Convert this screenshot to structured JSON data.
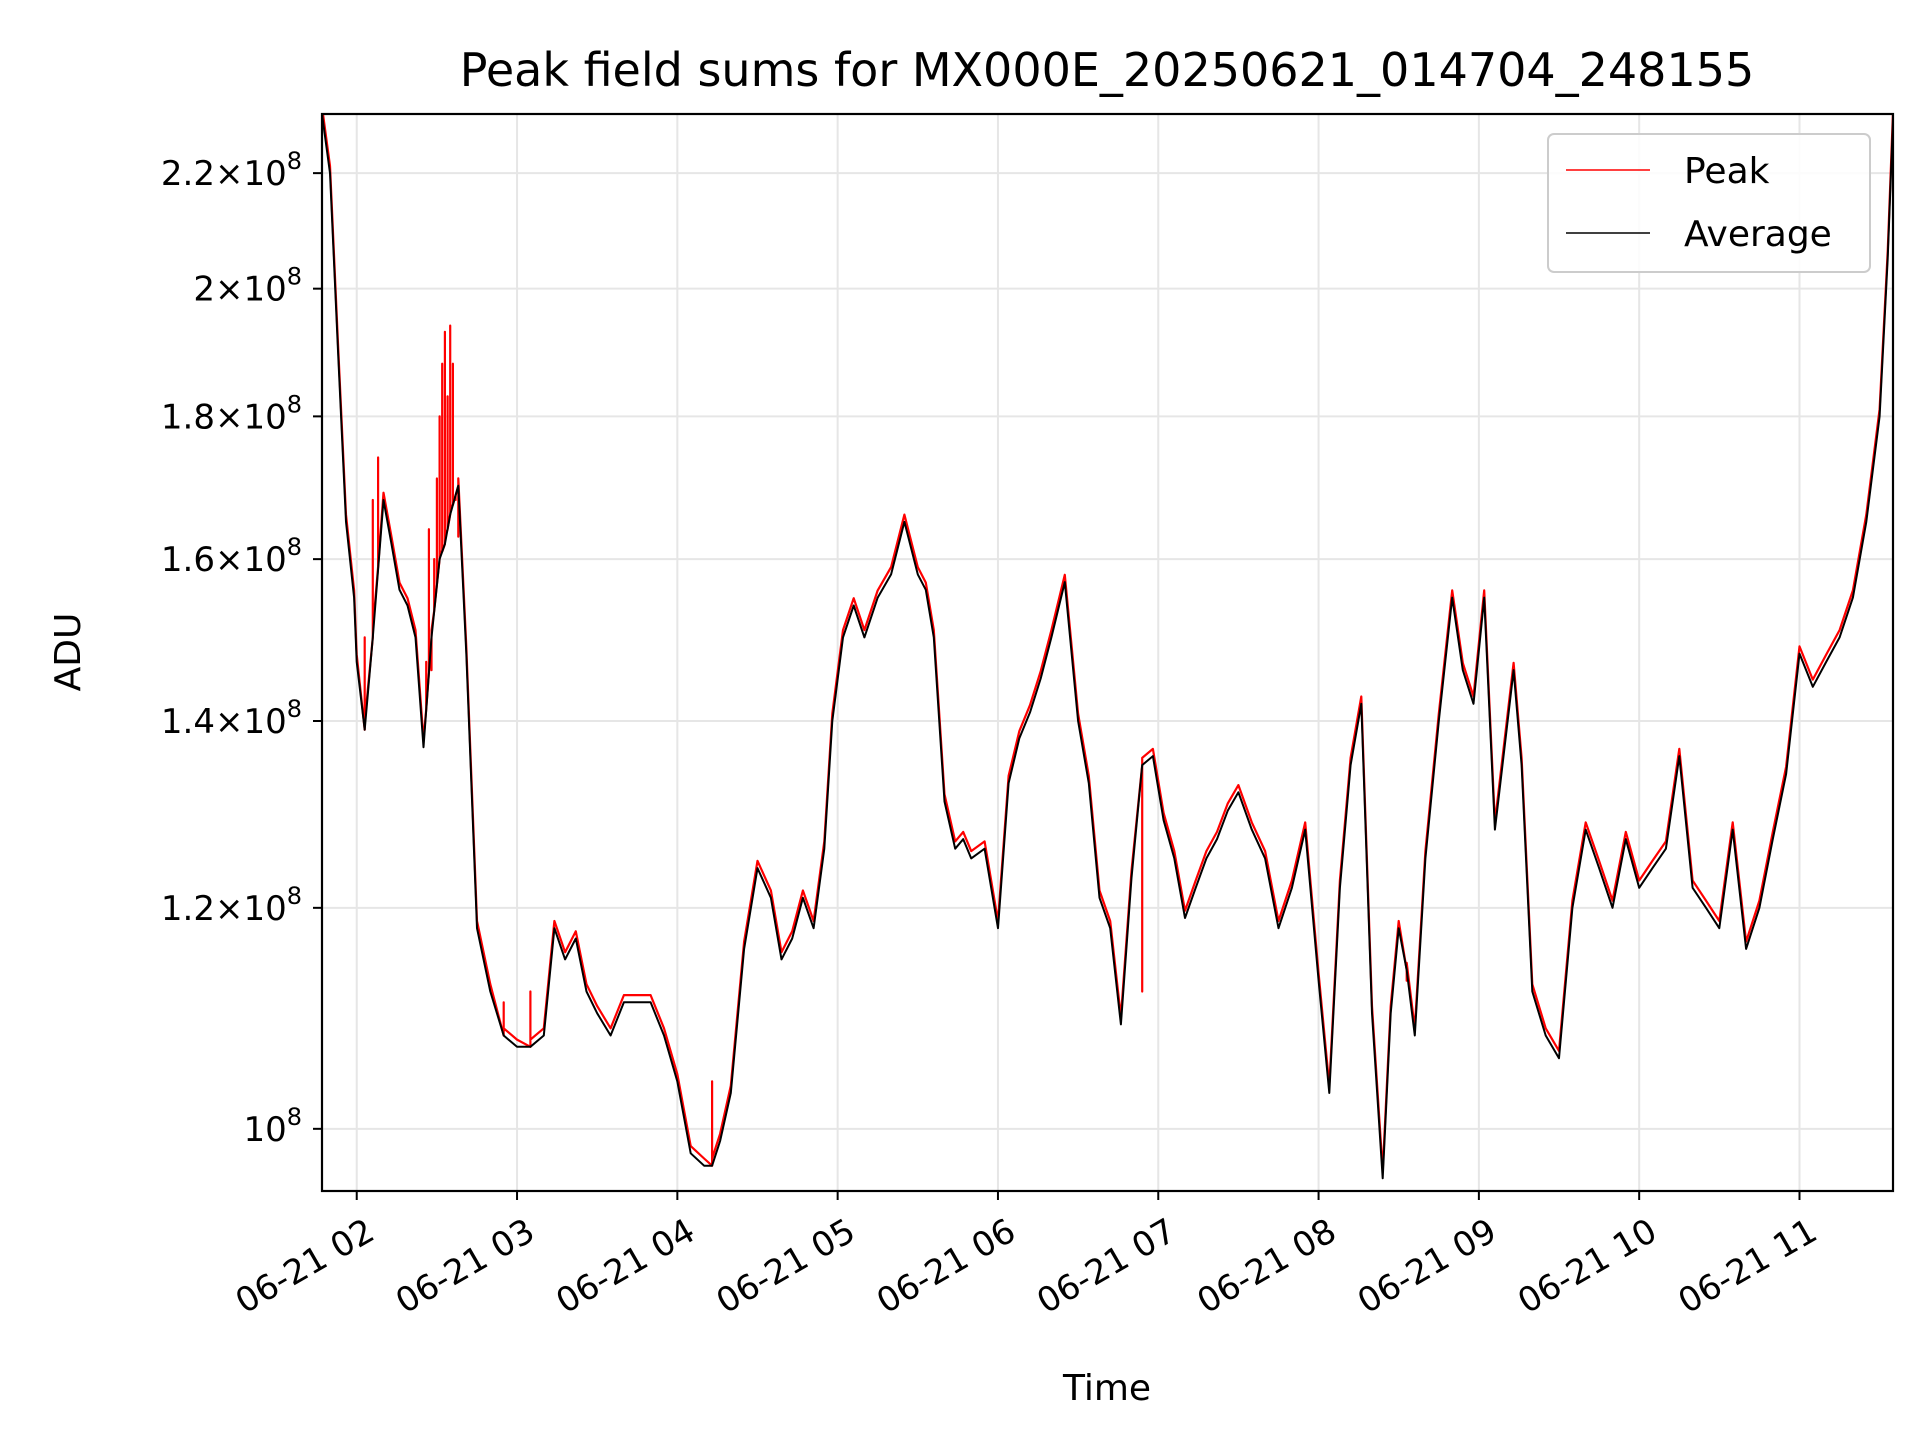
{
  "chart_data": {
    "type": "line",
    "title": "Peak field sums for MX000E_20250621_014704_248155",
    "xlabel": "Time",
    "ylabel": "ADU",
    "y_scale": "log",
    "ylim": [
      95000000,
      231000000
    ],
    "xlim": [
      "06-21 01:47",
      "06-21 11:35"
    ],
    "grid": true,
    "legend_position": "top-right",
    "x_ticks": [
      "06-21 02",
      "06-21 03",
      "06-21 04",
      "06-21 05",
      "06-21 06",
      "06-21 07",
      "06-21 08",
      "06-21 09",
      "06-21 10",
      "06-21 11"
    ],
    "y_ticks": [
      {
        "value": 100000000,
        "mant": "",
        "exp": "8"
      },
      {
        "value": 120000000,
        "mant": "1.2",
        "exp": "8"
      },
      {
        "value": 140000000,
        "mant": "1.4",
        "exp": "8"
      },
      {
        "value": 160000000,
        "mant": "1.6",
        "exp": "8"
      },
      {
        "value": 180000000,
        "mant": "1.8",
        "exp": "8"
      },
      {
        "value": 200000000,
        "mant": "2",
        "exp": "8"
      },
      {
        "value": 220000000,
        "mant": "2.2",
        "exp": "8"
      }
    ],
    "series": [
      {
        "name": "Average",
        "color": "#000000",
        "x": [
          "06-21 01:47",
          "06-21 01:50",
          "06-21 01:53",
          "06-21 01:56",
          "06-21 01:59",
          "06-21 02:00",
          "06-21 02:03",
          "06-21 02:06",
          "06-21 02:10",
          "06-21 02:13",
          "06-21 02:16",
          "06-21 02:19",
          "06-21 02:22",
          "06-21 02:25",
          "06-21 02:28",
          "06-21 02:31",
          "06-21 02:33",
          "06-21 02:35",
          "06-21 02:38",
          "06-21 02:41",
          "06-21 02:45",
          "06-21 02:50",
          "06-21 02:55",
          "06-21 03:00",
          "06-21 03:05",
          "06-21 03:10",
          "06-21 03:14",
          "06-21 03:18",
          "06-21 03:22",
          "06-21 03:26",
          "06-21 03:30",
          "06-21 03:35",
          "06-21 03:40",
          "06-21 03:45",
          "06-21 03:50",
          "06-21 03:55",
          "06-21 04:00",
          "06-21 04:05",
          "06-21 04:10",
          "06-21 04:13",
          "06-21 04:16",
          "06-21 04:20",
          "06-21 04:25",
          "06-21 04:30",
          "06-21 04:35",
          "06-21 04:39",
          "06-21 04:43",
          "06-21 04:47",
          "06-21 04:51",
          "06-21 04:55",
          "06-21 04:58",
          "06-21 05:02",
          "06-21 05:06",
          "06-21 05:10",
          "06-21 05:15",
          "06-21 05:20",
          "06-21 05:25",
          "06-21 05:30",
          "06-21 05:33",
          "06-21 05:36",
          "06-21 05:40",
          "06-21 05:44",
          "06-21 05:47",
          "06-21 05:50",
          "06-21 05:55",
          "06-21 06:00",
          "06-21 06:04",
          "06-21 06:08",
          "06-21 06:12",
          "06-21 06:16",
          "06-21 06:20",
          "06-21 06:25",
          "06-21 06:30",
          "06-21 06:34",
          "06-21 06:38",
          "06-21 06:42",
          "06-21 06:46",
          "06-21 06:50",
          "06-21 06:54",
          "06-21 06:58",
          "06-21 07:02",
          "06-21 07:06",
          "06-21 07:10",
          "06-21 07:14",
          "06-21 07:18",
          "06-21 07:22",
          "06-21 07:26",
          "06-21 07:30",
          "06-21 07:35",
          "06-21 07:40",
          "06-21 07:45",
          "06-21 07:50",
          "06-21 07:55",
          "06-21 08:00",
          "06-21 08:04",
          "06-21 08:08",
          "06-21 08:12",
          "06-21 08:16",
          "06-21 08:20",
          "06-21 08:24",
          "06-21 08:27",
          "06-21 08:30",
          "06-21 08:33",
          "06-21 08:36",
          "06-21 08:40",
          "06-21 08:45",
          "06-21 08:50",
          "06-21 08:54",
          "06-21 08:58",
          "06-21 09:02",
          "06-21 09:06",
          "06-21 09:10",
          "06-21 09:13",
          "06-21 09:16",
          "06-21 09:20",
          "06-21 09:25",
          "06-21 09:30",
          "06-21 09:35",
          "06-21 09:40",
          "06-21 09:45",
          "06-21 09:50",
          "06-21 09:55",
          "06-21 10:00",
          "06-21 10:05",
          "06-21 10:10",
          "06-21 10:15",
          "06-21 10:20",
          "06-21 10:25",
          "06-21 10:30",
          "06-21 10:35",
          "06-21 10:40",
          "06-21 10:45",
          "06-21 10:50",
          "06-21 10:55",
          "06-21 11:00",
          "06-21 11:05",
          "06-21 11:10",
          "06-21 11:15",
          "06-21 11:20",
          "06-21 11:25",
          "06-21 11:30",
          "06-21 11:33",
          "06-21 11:35"
        ],
        "values": [
          231,
          220,
          190,
          165,
          155,
          147,
          139,
          150,
          168,
          162,
          156,
          154,
          150,
          137,
          150,
          160,
          162,
          166,
          170,
          148,
          118,
          112,
          108,
          107,
          107,
          108,
          118,
          115,
          117,
          112,
          110,
          108,
          111,
          111,
          111,
          108,
          104,
          98,
          97,
          97,
          99,
          103,
          116,
          124,
          121,
          115,
          117,
          121,
          118,
          126,
          140,
          150,
          154,
          150,
          155,
          158,
          165,
          158,
          156,
          150,
          131,
          126,
          127,
          125,
          126,
          118,
          133,
          138,
          141,
          145,
          150,
          157,
          140,
          133,
          121,
          118,
          109,
          123,
          135,
          136,
          129,
          125,
          119,
          122,
          125,
          127,
          130,
          132,
          128,
          125,
          118,
          122,
          128,
          113,
          103,
          122,
          135,
          142,
          110,
          96,
          110,
          118,
          114,
          108,
          125,
          140,
          155,
          146,
          142,
          155,
          128,
          138,
          146,
          135,
          112,
          108,
          106,
          120,
          128,
          124,
          120,
          127,
          122,
          124,
          126,
          136,
          122,
          120,
          118,
          128,
          116,
          120,
          127,
          134,
          148,
          144,
          147,
          150,
          155,
          165,
          180,
          205,
          230
        ]
      },
      {
        "name": "Peak",
        "color": "#ff0000",
        "x": [
          "06-21 02:03",
          "06-21 02:06",
          "06-21 02:08",
          "06-21 02:26",
          "06-21 02:27",
          "06-21 02:28",
          "06-21 02:29",
          "06-21 02:30",
          "06-21 02:31",
          "06-21 02:32",
          "06-21 02:33",
          "06-21 02:34",
          "06-21 02:35",
          "06-21 02:36",
          "06-21 02:37",
          "06-21 02:38",
          "06-21 02:55",
          "06-21 03:05",
          "06-21 04:13",
          "06-21 06:54",
          "06-21 08:33"
        ],
        "values": [
          150,
          168,
          174,
          147,
          164,
          146,
          160,
          171,
          180,
          188,
          193,
          183,
          194,
          188,
          168,
          163,
          111,
          112,
          104,
          112,
          113
        ]
      }
    ]
  }
}
